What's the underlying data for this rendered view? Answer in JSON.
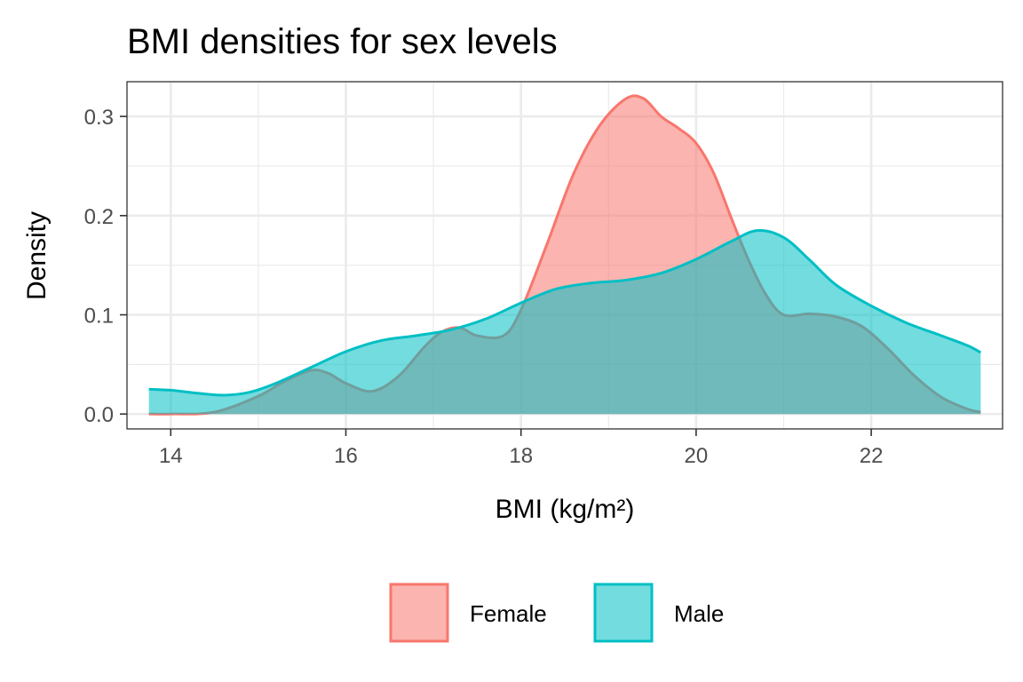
{
  "chart_data": {
    "type": "area",
    "title": "BMI densities for sex levels",
    "xlabel": "BMI (kg/m²)",
    "ylabel": "Density",
    "xlim": [
      13.5,
      23.5
    ],
    "ylim": [
      -0.015,
      0.335
    ],
    "x_ticks": [
      14,
      16,
      18,
      20,
      22
    ],
    "x_tick_labels": [
      "14",
      "16",
      "18",
      "20",
      "22"
    ],
    "y_ticks": [
      0,
      0.1,
      0.2,
      0.3
    ],
    "y_tick_labels": [
      "0.0",
      "0.1",
      "0.2",
      "0.3"
    ],
    "grid": true,
    "legend_position": "bottom",
    "series": [
      {
        "name": "Female",
        "line_color": "#F8766D",
        "fill_color": "#F8766D",
        "x": [
          13.75,
          14.0,
          14.5,
          15.0,
          15.3,
          15.6,
          15.8,
          16.0,
          16.3,
          16.6,
          16.9,
          17.1,
          17.3,
          17.5,
          17.8,
          18.0,
          18.3,
          18.6,
          18.9,
          19.2,
          19.4,
          19.6,
          19.8,
          20.0,
          20.2,
          20.4,
          20.6,
          20.8,
          21.0,
          21.3,
          21.6,
          21.9,
          22.2,
          22.5,
          22.8,
          23.1,
          23.25
        ],
        "y": [
          0.0,
          0.0,
          0.002,
          0.018,
          0.033,
          0.044,
          0.041,
          0.031,
          0.023,
          0.038,
          0.068,
          0.083,
          0.087,
          0.079,
          0.079,
          0.105,
          0.172,
          0.242,
          0.291,
          0.318,
          0.318,
          0.3,
          0.288,
          0.273,
          0.243,
          0.198,
          0.155,
          0.12,
          0.1,
          0.101,
          0.098,
          0.088,
          0.065,
          0.038,
          0.017,
          0.005,
          0.002
        ]
      },
      {
        "name": "Male",
        "line_color": "#00BFC4",
        "fill_color": "#00BFC4",
        "x": [
          13.75,
          14.0,
          14.3,
          14.6,
          14.9,
          15.2,
          15.6,
          16.0,
          16.4,
          16.8,
          17.2,
          17.6,
          18.0,
          18.4,
          18.8,
          19.2,
          19.6,
          20.0,
          20.4,
          20.7,
          21.0,
          21.3,
          21.6,
          22.0,
          22.4,
          22.8,
          23.1,
          23.25
        ],
        "y": [
          0.025,
          0.024,
          0.021,
          0.019,
          0.022,
          0.031,
          0.047,
          0.063,
          0.074,
          0.079,
          0.085,
          0.096,
          0.112,
          0.126,
          0.132,
          0.135,
          0.142,
          0.156,
          0.174,
          0.185,
          0.178,
          0.155,
          0.13,
          0.109,
          0.092,
          0.079,
          0.069,
          0.062
        ]
      }
    ]
  }
}
